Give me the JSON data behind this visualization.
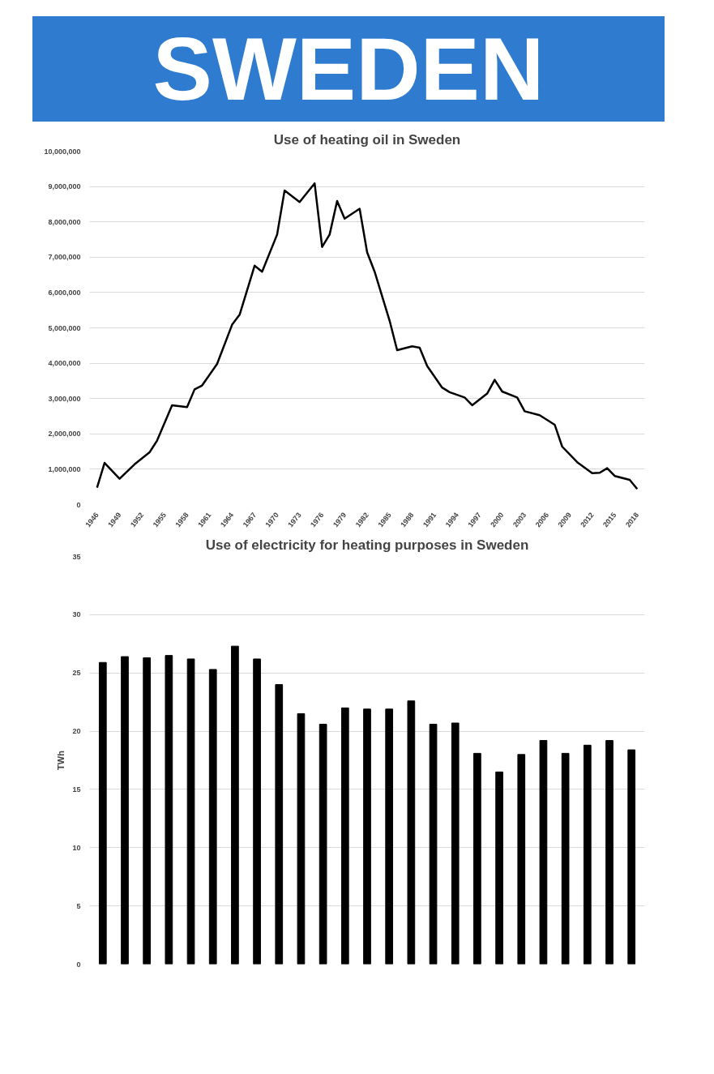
{
  "chart_data": [
    {
      "type": "line",
      "title": "SWEDEN",
      "subtitle": "Use of heating oil in Sweden",
      "x": [
        1946,
        1947,
        1949,
        1951,
        1953,
        1954,
        1956,
        1958,
        1959,
        1960,
        1962,
        1964,
        1965,
        1967,
        1968,
        1970,
        1971,
        1973,
        1975,
        1976,
        1977,
        1978,
        1979,
        1981,
        1982,
        1983,
        1985,
        1986,
        1988,
        1989,
        1990,
        1992,
        1993,
        1995,
        1996,
        1998,
        1999,
        2000,
        2002,
        2003,
        2005,
        2007,
        2008,
        2010,
        2012,
        2013,
        2014,
        2015,
        2017,
        2018
      ],
      "series": [
        {
          "color": "#000000",
          "values": [
            480000,
            1180000,
            730000,
            1140000,
            1480000,
            1810000,
            2810000,
            2760000,
            3260000,
            3370000,
            3980000,
            5090000,
            5370000,
            6760000,
            6590000,
            7640000,
            8890000,
            8560000,
            9090000,
            7290000,
            7640000,
            8590000,
            8090000,
            8370000,
            7140000,
            6590000,
            5200000,
            4370000,
            4480000,
            4440000,
            3920000,
            3310000,
            3180000,
            3030000,
            2810000,
            3140000,
            3530000,
            3200000,
            3030000,
            2640000,
            2530000,
            2260000,
            1640000,
            1200000,
            890000,
            900000,
            1030000,
            810000,
            700000,
            440000
          ]
        }
      ],
      "xlim": [
        1945,
        2019
      ],
      "xticks": [
        1946,
        1949,
        1952,
        1955,
        1958,
        1961,
        1964,
        1967,
        1970,
        1973,
        1976,
        1979,
        1982,
        1985,
        1988,
        1991,
        1994,
        1997,
        2000,
        2003,
        2006,
        2009,
        2012,
        2015,
        2018
      ],
      "ylim": [
        0,
        10000000
      ],
      "yticks": [
        0,
        {
          "value": 1000000,
          "label": "1,000,000"
        },
        {
          "value": 2000000,
          "label": "2,000,000"
        },
        {
          "value": 3000000,
          "label": "3,000,000"
        },
        {
          "value": 4000000,
          "label": "4,000,000"
        },
        {
          "value": 5000000,
          "label": "5,000,000"
        },
        {
          "value": 6000000,
          "label": "6,000,000"
        },
        {
          "value": 7000000,
          "label": "7,000,000"
        },
        {
          "value": 8000000,
          "label": "8,000,000"
        },
        {
          "value": 9000000,
          "label": "9,000,000"
        },
        {
          "value": 10000000,
          "label": "10,000,000"
        }
      ],
      "grid": "y",
      "marker": "none",
      "line_style": "solid"
    },
    {
      "type": "bar",
      "title": "Use of electricity for heating purposes in Sweden",
      "ylabel": "TWh",
      "categories": [
        null,
        null,
        null,
        null,
        null,
        null,
        null,
        null,
        null,
        null,
        null,
        null,
        null,
        null,
        null,
        null,
        null,
        null,
        null,
        null,
        null,
        null,
        null,
        null,
        null
      ],
      "series": [
        {
          "color": "#000000",
          "values": [
            25.9,
            26.4,
            26.3,
            26.5,
            26.2,
            25.3,
            27.3,
            26.2,
            24.0,
            21.5,
            20.6,
            22.0,
            21.9,
            21.9,
            22.6,
            20.6,
            20.7,
            18.1,
            16.5,
            18.0,
            19.2,
            18.1,
            18.8,
            19.2,
            18.4
          ]
        }
      ],
      "ylim": [
        0,
        35
      ],
      "yticks": [
        0,
        5,
        10,
        15,
        20,
        25,
        30,
        35
      ],
      "grid": "y"
    }
  ]
}
